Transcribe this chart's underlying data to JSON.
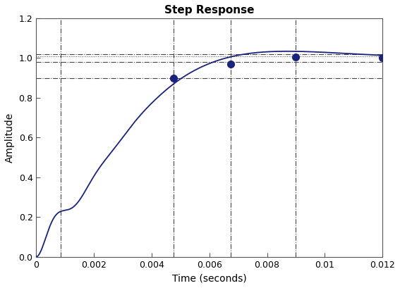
{
  "title": "Step Response",
  "xlabel": "Time (seconds)",
  "ylabel": "Amplitude",
  "xlim": [
    0,
    0.012
  ],
  "ylim": [
    0,
    1.2
  ],
  "xticks": [
    0,
    0.002,
    0.004,
    0.006,
    0.008,
    0.01,
    0.012
  ],
  "yticks": [
    0,
    0.2,
    0.4,
    0.6,
    0.8,
    1.0,
    1.2
  ],
  "curve_color": "#1a237e",
  "marker_color": "#1a237e",
  "hline_upper2": 1.02,
  "hline_upper1": 1.01,
  "hline_lower1": 0.98,
  "hline_lower2": 0.9,
  "vline1": 0.00085,
  "vline2": 0.00475,
  "vline3": 0.00675,
  "vline4": 0.009,
  "marker_points": [
    [
      0.00475,
      0.9
    ],
    [
      0.00675,
      0.97
    ],
    [
      0.009,
      1.005
    ]
  ],
  "final_marker": [
    0.012,
    1.0
  ],
  "dash_color": "#444444",
  "background_color": "#ffffff"
}
